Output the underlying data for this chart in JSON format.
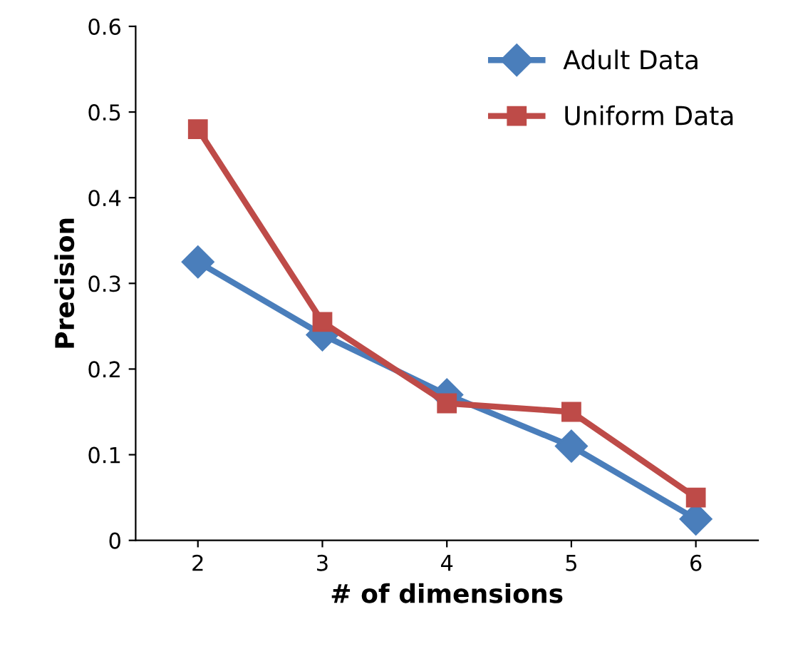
{
  "chart_data": {
    "type": "line",
    "xlabel": "# of dimensions",
    "ylabel": "Precision",
    "categories": [
      "2",
      "3",
      "4",
      "5",
      "6"
    ],
    "series": [
      {
        "name": "Adult Data",
        "color": "#4a7ebb",
        "marker": "diamond",
        "values": [
          0.325,
          0.24,
          0.17,
          0.11,
          0.025
        ]
      },
      {
        "name": "Uniform Data",
        "color": "#be4b48",
        "marker": "square",
        "values": [
          0.48,
          0.255,
          0.16,
          0.15,
          0.05
        ]
      }
    ],
    "ylim": [
      0,
      0.6
    ],
    "yticks": [
      0,
      {
        "value": 0.1,
        "label": "0.1"
      },
      {
        "value": 0.2,
        "label": "0.2"
      },
      {
        "value": 0.3,
        "label": "0.3"
      },
      {
        "value": 0.4,
        "label": "0.4"
      },
      {
        "value": 0.5,
        "label": "0.5"
      },
      {
        "value": 0.6,
        "label": "0.6"
      }
    ],
    "grid": false,
    "legend": "top right",
    "line_style": "solid"
  }
}
